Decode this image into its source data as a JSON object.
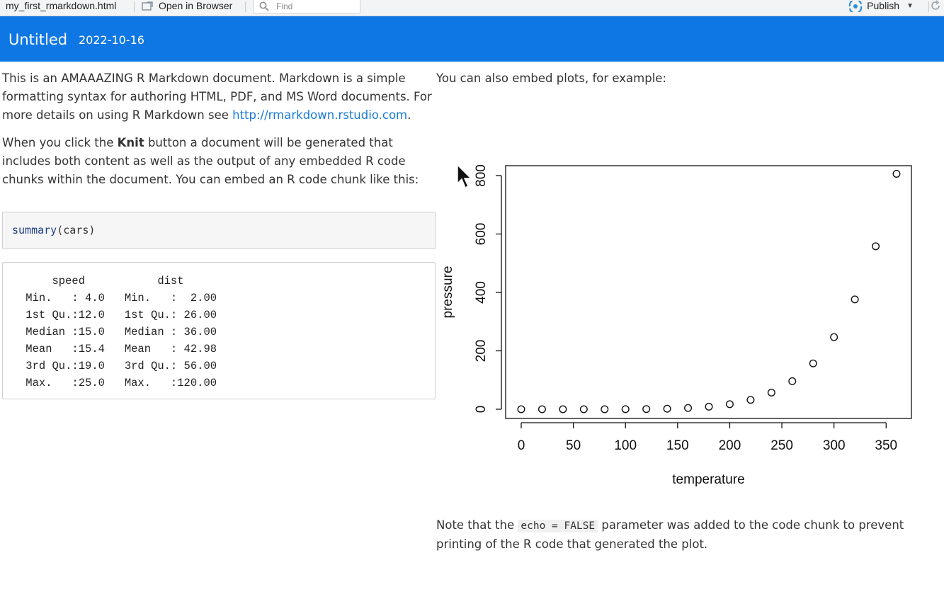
{
  "toolbar": {
    "filename": "my_first_rmarkdown.html",
    "open_label": "Open in Browser",
    "find_placeholder": "Find",
    "publish_label": "Publish"
  },
  "header": {
    "title": "Untitled",
    "date": "2022-10-16",
    "background": "#0f77e4"
  },
  "intro": {
    "text_before_link": "This is an AMAAAZING R Markdown document. Markdown is a simple formatting syntax for authoring HTML, PDF, and MS Word documents. For more details on using R Markdown see ",
    "link": "http://rmarkdown.rstudio.com",
    "text_after_link": "."
  },
  "knit": {
    "before": "When you click the ",
    "bold": "Knit",
    "after": " button a document will be generated that includes both content as well as the output of any embedded R code chunks within the document. You can embed an R code chunk like this:"
  },
  "code_chunk": {
    "fn": "summary",
    "args": "(cars)"
  },
  "code_output": "     speed           dist       \n Min.   : 4.0   Min.   :  2.00  \n 1st Qu.:12.0   1st Qu.: 26.00  \n Median :15.0   Median : 36.00  \n Mean   :15.4   Mean   : 42.98  \n 3rd Qu.:19.0   3rd Qu.: 56.00  \n Max.   :25.0   Max.   :120.00  ",
  "plots_intro": "You can also embed plots, for example:",
  "note": {
    "before": "Note that the ",
    "code": "echo = FALSE",
    "after": " parameter was added to the code chunk to prevent printing of the R code that generated the plot."
  },
  "chart_data": {
    "type": "scatter",
    "title": "",
    "xlabel": "temperature",
    "ylabel": "pressure",
    "xlim": [
      0,
      360
    ],
    "ylim": [
      0,
      806
    ],
    "xticks": [
      0,
      50,
      100,
      150,
      200,
      250,
      300,
      350
    ],
    "yticks": [
      0,
      200,
      400,
      600,
      800
    ],
    "grid": false,
    "series": [
      {
        "x": [
          0,
          20,
          40,
          60,
          80,
          100,
          120,
          140,
          160,
          180,
          200,
          220,
          240,
          260,
          280,
          300,
          320,
          340,
          360
        ],
        "y": [
          0.0002,
          0.0012,
          0.006,
          0.03,
          0.09,
          0.27,
          0.75,
          1.85,
          4.2,
          8.8,
          17.3,
          32.1,
          57.0,
          96.0,
          157.0,
          247.0,
          376.0,
          558.0,
          806.0
        ]
      }
    ]
  }
}
